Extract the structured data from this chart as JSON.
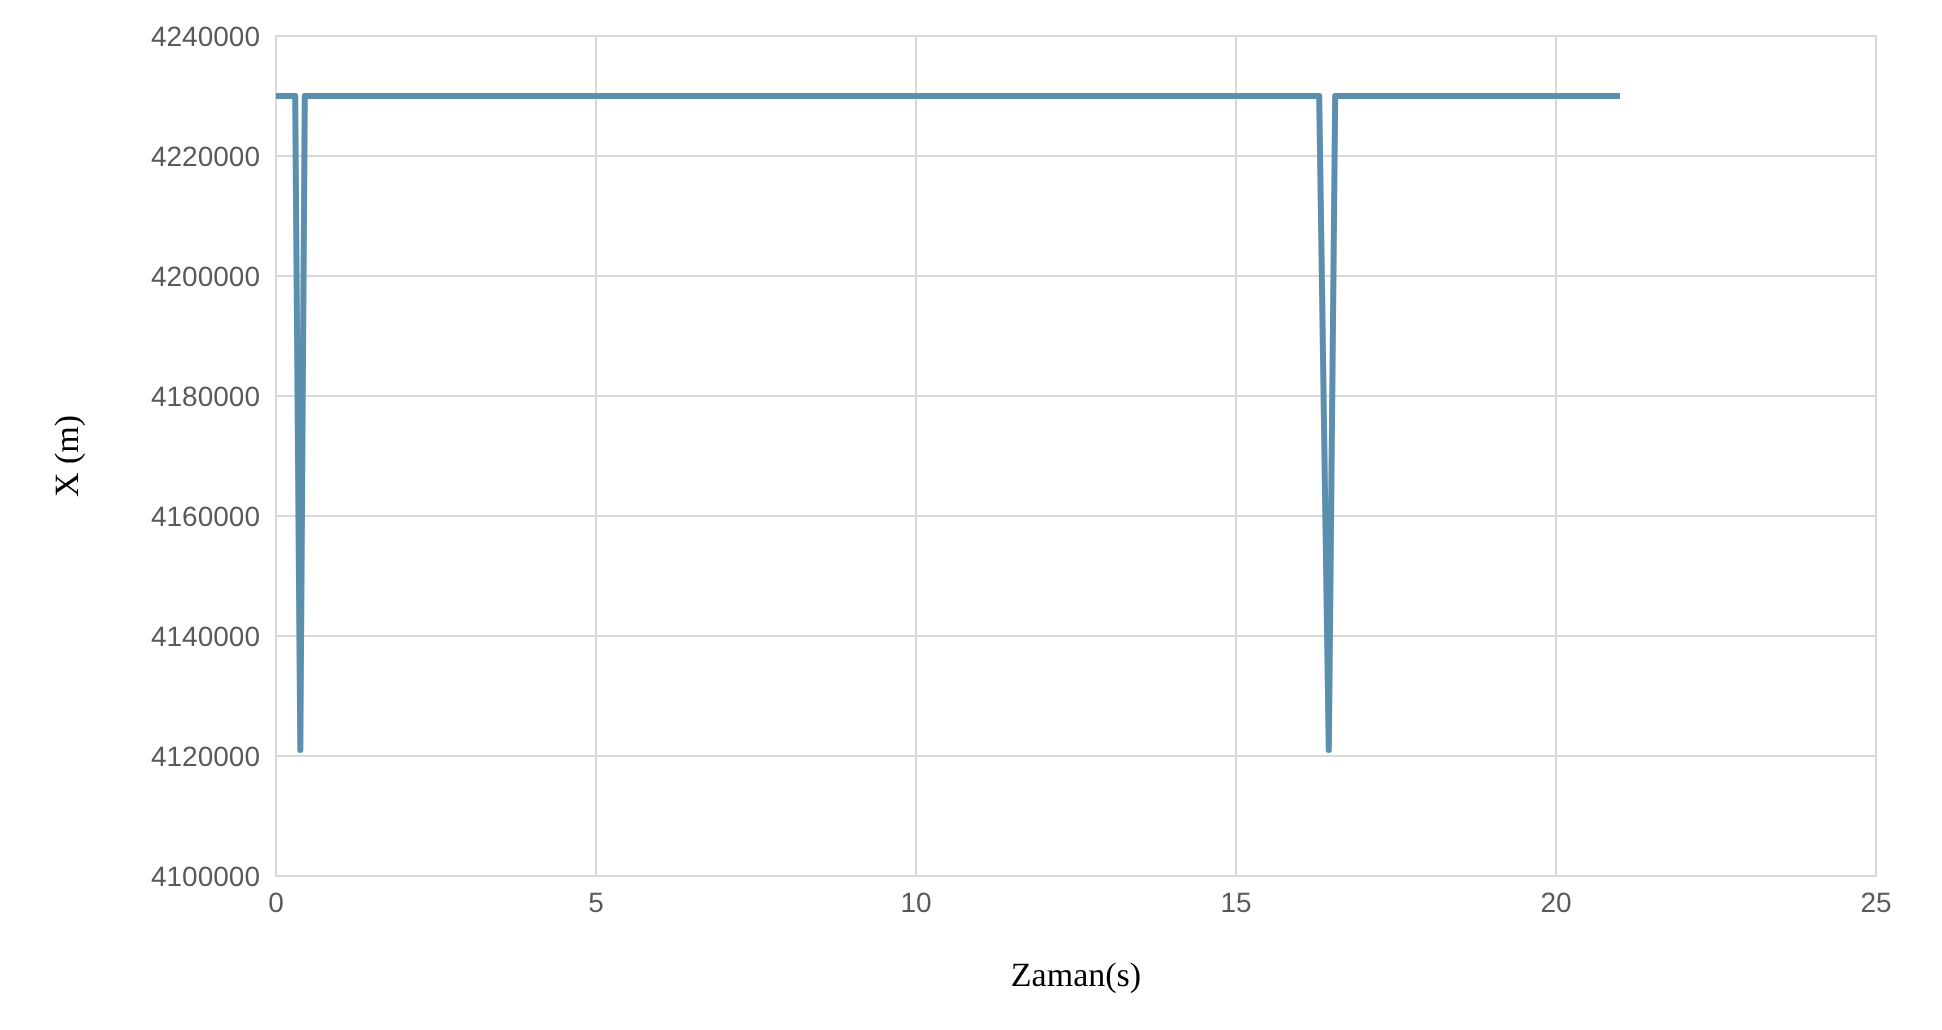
{
  "chart_data": {
    "type": "line",
    "xlabel": "Zaman(s)",
    "ylabel": "X (m)",
    "series": [
      {
        "color": "#5b8fae",
        "x": [
          0,
          0.3,
          0.38,
          0.45,
          16.3,
          16.45,
          16.55,
          21
        ],
        "values": [
          4230000,
          4230000,
          4121000,
          4230000,
          4230000,
          4121000,
          4230000,
          4230000
        ]
      }
    ],
    "xlim": [
      0,
      25
    ],
    "xticks": [
      0,
      5,
      10,
      15,
      20,
      25
    ],
    "ylim": [
      4100000,
      4240000
    ],
    "yticks": [
      4100000,
      4120000,
      4140000,
      4160000,
      4180000,
      4200000,
      4220000,
      4240000
    ],
    "grid": true,
    "marker": "none",
    "line_style": "solid"
  }
}
